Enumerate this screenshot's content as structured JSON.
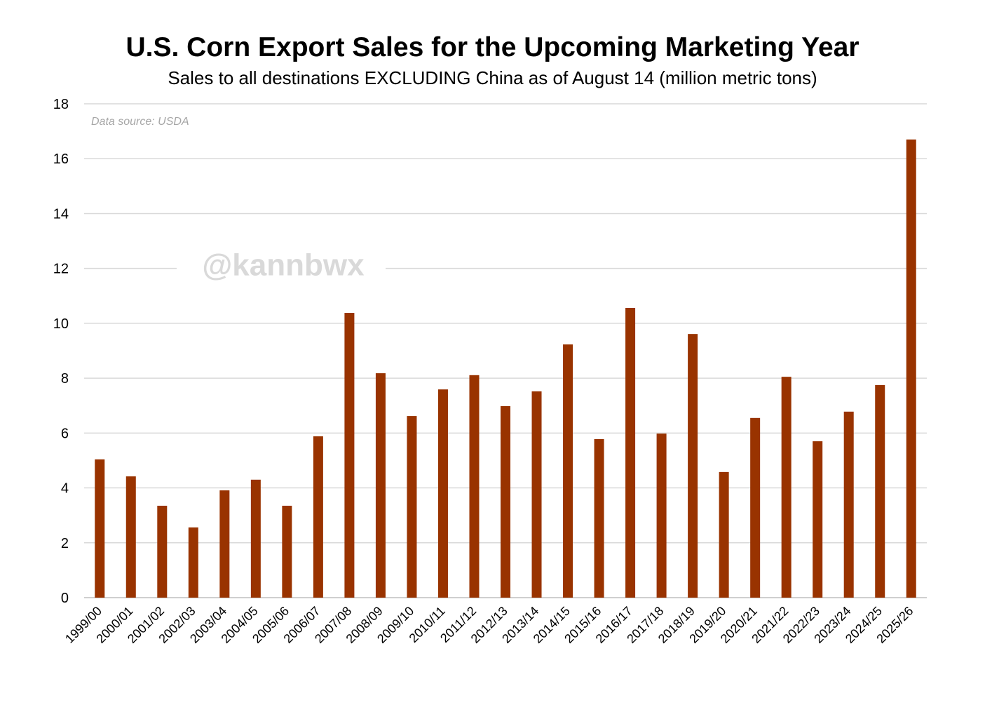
{
  "chart_data": {
    "type": "bar",
    "title": "U.S. Corn Export Sales for the Upcoming Marketing Year",
    "subtitle": "Sales to all destinations EXCLUDING China as of August 14 (million metric tons)",
    "source": "Data source: USDA",
    "watermark": "@kannbwx",
    "xlabel": "",
    "ylabel": "",
    "ylim": [
      0,
      18
    ],
    "yticks": [
      0,
      2,
      4,
      6,
      8,
      10,
      12,
      14,
      16,
      18
    ],
    "grid": true,
    "bar_color": "#993300",
    "categories": [
      "1999/00",
      "2000/01",
      "2001/02",
      "2002/03",
      "2003/04",
      "2004/05",
      "2005/06",
      "2006/07",
      "2007/08",
      "2008/09",
      "2009/10",
      "2010/11",
      "2011/12",
      "2012/13",
      "2013/14",
      "2014/15",
      "2015/16",
      "2016/17",
      "2017/18",
      "2018/19",
      "2019/20",
      "2020/21",
      "2021/22",
      "2022/23",
      "2023/24",
      "2024/25",
      "2025/26"
    ],
    "values": [
      5.04,
      4.42,
      3.35,
      2.56,
      3.91,
      4.3,
      3.35,
      5.88,
      10.38,
      8.18,
      6.62,
      7.59,
      8.11,
      6.98,
      7.52,
      9.23,
      5.78,
      10.56,
      5.98,
      9.61,
      4.58,
      6.55,
      8.05,
      5.7,
      6.78,
      7.75,
      16.7
    ]
  }
}
